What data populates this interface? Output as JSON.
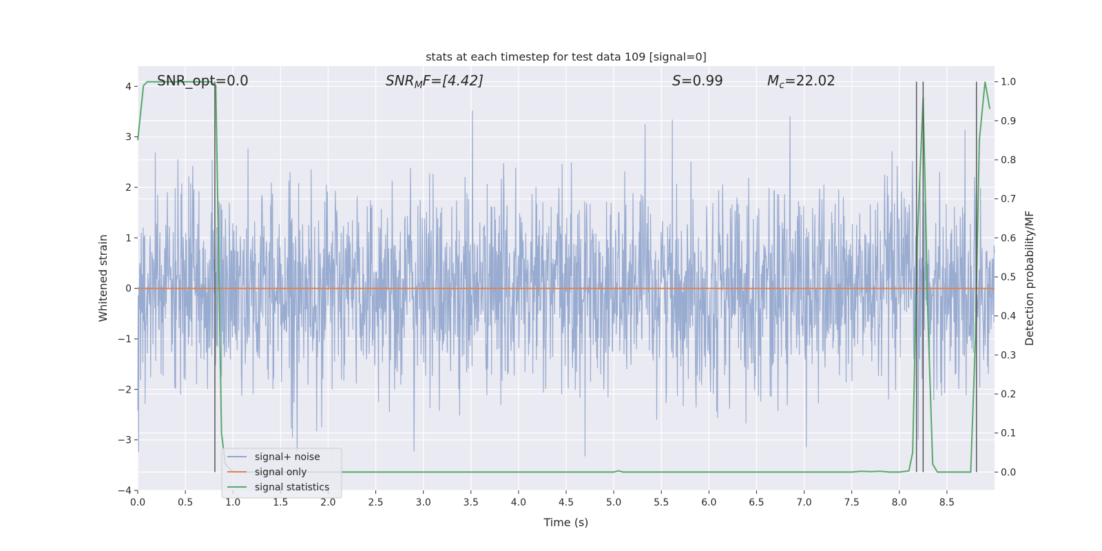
{
  "chart_data": {
    "type": "line",
    "title": "stats at each timestep for test data 109 [signal=0]",
    "xlabel": "Time (s)",
    "ylabel": "Whitened strain",
    "y2label": "Detection probability/MF",
    "xlim": [
      0.0,
      9.0
    ],
    "ylim": [
      -4,
      4.4
    ],
    "y2lim": [
      -0.047,
      1.04
    ],
    "xticks": [
      0.0,
      0.5,
      1.0,
      1.5,
      2.0,
      2.5,
      3.0,
      3.5,
      4.0,
      4.5,
      5.0,
      5.5,
      6.0,
      6.5,
      7.0,
      7.5,
      8.0,
      8.5
    ],
    "yticks": [
      4,
      3,
      2,
      1,
      0,
      -1,
      -2,
      -3,
      -4
    ],
    "y2ticks": [
      1.0,
      0.9,
      0.8,
      0.7,
      0.6,
      0.5,
      0.4,
      0.3,
      0.2,
      0.1,
      0.0
    ],
    "grid": true,
    "legend_position": "lower-left",
    "annotations": {
      "snr_opt": "SNR_opt=0.0",
      "snr_mf_prefix": "SNR",
      "snr_mf_sub": "M",
      "snr_mf_suffix": "F=[4.42]",
      "s_prefix": "S",
      "s_suffix": "=0.99",
      "mc_prefix": "M",
      "mc_sub": "c",
      "mc_suffix": "=22.02"
    },
    "noise": {
      "name": "signal+ noise",
      "color": "#8fa4cc",
      "samples": 2200,
      "std": 1.0,
      "range": [
        -3.9,
        3.9
      ]
    },
    "series": [
      {
        "name": "signal only",
        "color": "#dd8452",
        "axis": "left",
        "x": [
          0.0,
          9.0
        ],
        "values": [
          0,
          0
        ]
      },
      {
        "name": "signal statistics",
        "color": "#55a868",
        "axis": "right",
        "x": [
          0.0,
          0.06,
          0.1,
          0.2,
          0.3,
          0.4,
          0.5,
          0.6,
          0.7,
          0.77,
          0.82,
          0.85,
          0.88,
          0.92,
          1.0,
          2.0,
          3.0,
          4.0,
          4.9,
          5.0,
          5.05,
          5.1,
          6.0,
          7.0,
          7.5,
          7.6,
          7.7,
          7.8,
          7.9,
          8.0,
          8.1,
          8.14,
          8.19,
          8.25,
          8.3,
          8.35,
          8.4,
          8.5,
          8.6,
          8.75,
          8.8,
          8.84,
          8.9,
          8.95
        ],
        "values": [
          0.85,
          0.99,
          1.0,
          1.0,
          1.0,
          1.0,
          1.0,
          1.0,
          1.0,
          1.0,
          0.99,
          0.55,
          0.1,
          0.02,
          0.0,
          0.0,
          0.0,
          0.0,
          0.0,
          0.0,
          0.003,
          0.0,
          0.0,
          0.0,
          0.0,
          0.002,
          0.001,
          0.002,
          0.0,
          0.0,
          0.003,
          0.05,
          0.6,
          0.96,
          0.4,
          0.02,
          0.0,
          0.0,
          0.0,
          0.0,
          0.35,
          0.85,
          1.0,
          0.93
        ]
      }
    ],
    "vlines": [
      {
        "x": 0.81,
        "color": "#555555"
      },
      {
        "x": 8.18,
        "color": "#555555"
      },
      {
        "x": 8.25,
        "color": "#555555"
      },
      {
        "x": 8.81,
        "color": "#555555"
      }
    ]
  }
}
